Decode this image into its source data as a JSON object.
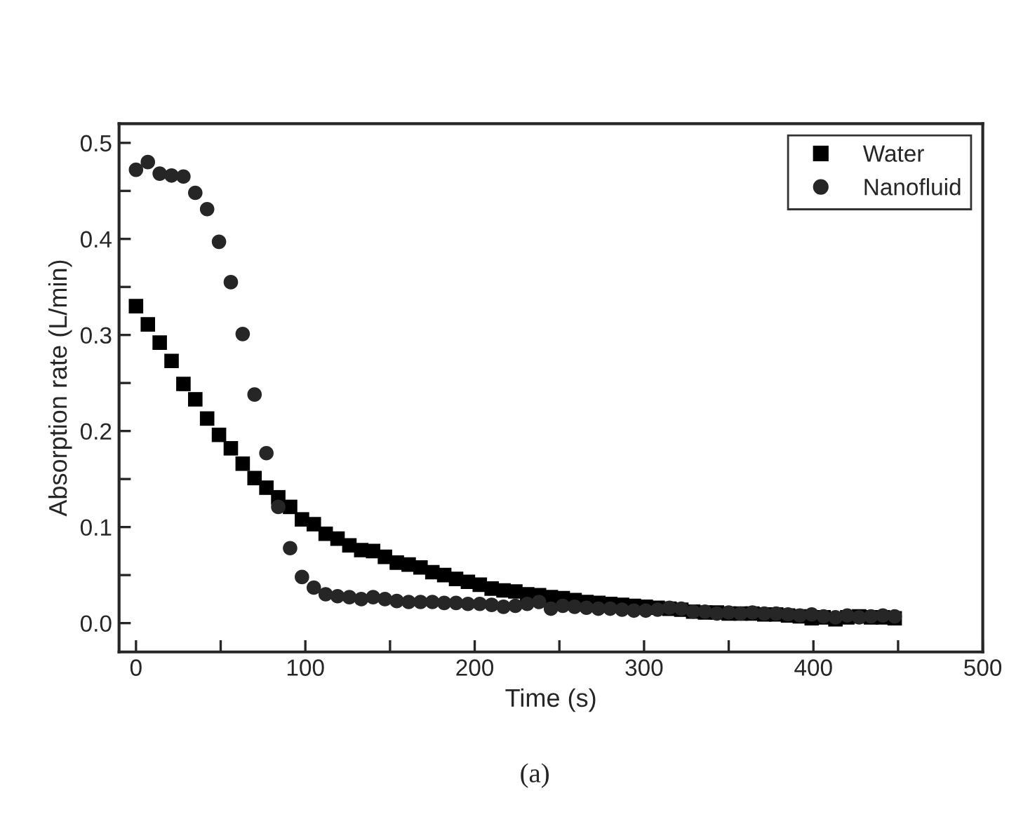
{
  "chart_data": {
    "type": "scatter",
    "xlabel": "Time (s)",
    "ylabel": "Absorption rate (L/min)",
    "annotations": [
      "(a)"
    ],
    "x": [
      0,
      7,
      14,
      21,
      28,
      35,
      42,
      49,
      56,
      63,
      70,
      77,
      84,
      91,
      98,
      105,
      112,
      119,
      126,
      133,
      140,
      147,
      154,
      161,
      168,
      175,
      182,
      189,
      196,
      203,
      210,
      217,
      224,
      231,
      238,
      245,
      252,
      259,
      266,
      273,
      280,
      287,
      294,
      301,
      308,
      315,
      322,
      329,
      336,
      343,
      350,
      357,
      364,
      371,
      378,
      385,
      392,
      399,
      406,
      413,
      420,
      427,
      434,
      441,
      448
    ],
    "series": [
      {
        "name": "Water",
        "color": "#000000",
        "marker": "square",
        "values": [
          0.33,
          0.311,
          0.292,
          0.273,
          0.249,
          0.233,
          0.213,
          0.196,
          0.182,
          0.166,
          0.151,
          0.141,
          0.131,
          0.121,
          0.108,
          0.103,
          0.093,
          0.088,
          0.081,
          0.076,
          0.075,
          0.069,
          0.063,
          0.061,
          0.058,
          0.053,
          0.05,
          0.046,
          0.043,
          0.04,
          0.036,
          0.034,
          0.033,
          0.03,
          0.029,
          0.027,
          0.026,
          0.024,
          0.022,
          0.021,
          0.02,
          0.019,
          0.018,
          0.017,
          0.016,
          0.015,
          0.014,
          0.012,
          0.011,
          0.011,
          0.01,
          0.01,
          0.01,
          0.009,
          0.009,
          0.008,
          0.007,
          0.005,
          0.006,
          0.004,
          0.006,
          0.007,
          0.006,
          0.006,
          0.005
        ]
      },
      {
        "name": "Nanofluid",
        "color": "#262626",
        "marker": "circle",
        "values": [
          0.472,
          0.48,
          0.468,
          0.466,
          0.465,
          0.448,
          0.431,
          0.397,
          0.355,
          0.301,
          0.238,
          0.177,
          0.121,
          0.078,
          0.048,
          0.037,
          0.03,
          0.028,
          0.027,
          0.025,
          0.027,
          0.025,
          0.023,
          0.022,
          0.022,
          0.022,
          0.021,
          0.021,
          0.02,
          0.02,
          0.019,
          0.017,
          0.018,
          0.02,
          0.022,
          0.015,
          0.018,
          0.017,
          0.016,
          0.015,
          0.015,
          0.014,
          0.013,
          0.013,
          0.014,
          0.016,
          0.015,
          0.012,
          0.012,
          0.01,
          0.011,
          0.01,
          0.011,
          0.01,
          0.01,
          0.009,
          0.008,
          0.009,
          0.007,
          0.006,
          0.008,
          0.006,
          0.007,
          0.008,
          0.007
        ]
      }
    ],
    "xlim": [
      -10,
      500
    ],
    "ylim": [
      -0.03,
      0.52
    ],
    "xticks": [
      0,
      {
        "value": 50,
        "label": null
      },
      100,
      {
        "value": 150,
        "label": null
      },
      200,
      {
        "value": 250,
        "label": null
      },
      300,
      {
        "value": 350,
        "label": null
      },
      400,
      {
        "value": 450,
        "label": null
      },
      500
    ],
    "yticks": [
      {
        "value": 0,
        "label": "0.0"
      },
      {
        "value": 0.05,
        "label": null
      },
      {
        "value": 0.1,
        "label": "0.1"
      },
      {
        "value": 0.15,
        "label": null
      },
      {
        "value": 0.2,
        "label": "0.2"
      },
      {
        "value": 0.25,
        "label": null
      },
      {
        "value": 0.3,
        "label": "0.3"
      },
      {
        "value": 0.35,
        "label": null
      },
      {
        "value": 0.4,
        "label": "0.4"
      },
      {
        "value": 0.45,
        "label": null
      },
      {
        "value": 0.5,
        "label": "0.5"
      }
    ],
    "grid": false,
    "legend": "top right"
  }
}
